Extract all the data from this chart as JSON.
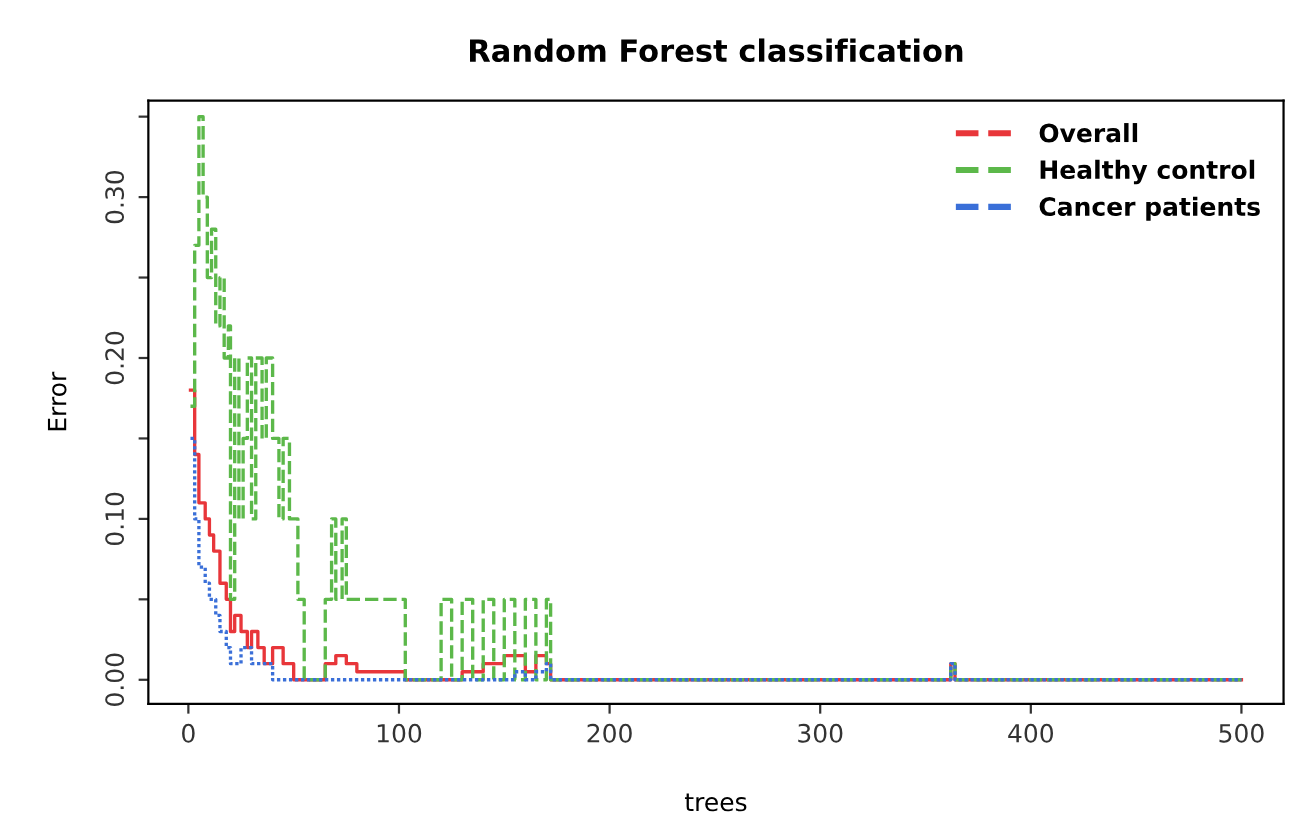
{
  "chart_data": {
    "type": "step",
    "title": "Random Forest classification",
    "xlabel": "trees",
    "ylabel": "Error",
    "xlim": [
      -19,
      520
    ],
    "ylim": [
      -0.015,
      0.36
    ],
    "xticks": [
      0,
      100,
      200,
      300,
      400,
      500
    ],
    "yticks": [
      {
        "value": 0,
        "label": "0.00"
      },
      {
        "value": 0.05,
        "label": null
      },
      {
        "value": 0.1,
        "label": "0.10"
      },
      {
        "value": 0.15,
        "label": null
      },
      {
        "value": 0.2,
        "label": "0.20"
      },
      {
        "value": 0.25,
        "label": null
      },
      {
        "value": 0.3,
        "label": "0.30"
      },
      {
        "value": 0.35,
        "label": null
      }
    ],
    "grid": false,
    "legend": "top right",
    "series": [
      {
        "name": "Overall",
        "color": "#e8363a",
        "line_style": "solid",
        "x": [
          1,
          3,
          5,
          8,
          10,
          12,
          15,
          18,
          20,
          22,
          25,
          28,
          30,
          33,
          36,
          40,
          45,
          50,
          55,
          65,
          70,
          75,
          80,
          90,
          103,
          115,
          130,
          140,
          150,
          160,
          165,
          170,
          172,
          180,
          360,
          362,
          364,
          500
        ],
        "values": [
          0.18,
          0.14,
          0.11,
          0.1,
          0.09,
          0.08,
          0.06,
          0.05,
          0.03,
          0.04,
          0.03,
          0.02,
          0.03,
          0.02,
          0.01,
          0.02,
          0.01,
          0.0,
          0.0,
          0.01,
          0.015,
          0.01,
          0.005,
          0.005,
          0.0,
          0.0,
          0.005,
          0.01,
          0.015,
          0.005,
          0.015,
          0.01,
          0.0,
          0.0,
          0.0,
          0.01,
          0.0,
          0.0
        ]
      },
      {
        "name": "Healthy control",
        "color": "#5cb84a",
        "line_style": "dashed",
        "x": [
          1,
          3,
          5,
          7,
          9,
          11,
          13,
          15,
          17,
          19,
          20,
          22,
          24,
          26,
          28,
          30,
          32,
          35,
          37,
          40,
          43,
          45,
          48,
          52,
          55,
          62,
          65,
          68,
          70,
          73,
          75,
          78,
          90,
          103,
          115,
          120,
          125,
          130,
          135,
          140,
          145,
          150,
          155,
          160,
          165,
          170,
          172,
          180,
          360,
          362,
          364,
          500
        ],
        "values": [
          0.17,
          0.27,
          0.35,
          0.3,
          0.25,
          0.28,
          0.22,
          0.25,
          0.2,
          0.22,
          0.05,
          0.2,
          0.1,
          0.15,
          0.2,
          0.1,
          0.2,
          0.15,
          0.2,
          0.15,
          0.1,
          0.15,
          0.1,
          0.05,
          0.0,
          0.0,
          0.05,
          0.1,
          0.05,
          0.1,
          0.05,
          0.05,
          0.05,
          0.0,
          0.0,
          0.05,
          0.0,
          0.05,
          0.0,
          0.05,
          0.0,
          0.05,
          0.0,
          0.05,
          0.0,
          0.05,
          0.0,
          0.0,
          0.0,
          0.01,
          0.0,
          0.0
        ]
      },
      {
        "name": "Cancer patients",
        "color": "#3a6fd8",
        "line_style": "dotted",
        "x": [
          1,
          3,
          5,
          8,
          10,
          13,
          15,
          18,
          20,
          25,
          30,
          35,
          40,
          50,
          150,
          155,
          160,
          165,
          170,
          172,
          180,
          360,
          362,
          364,
          500
        ],
        "values": [
          0.15,
          0.1,
          0.07,
          0.06,
          0.05,
          0.04,
          0.03,
          0.02,
          0.01,
          0.02,
          0.01,
          0.01,
          0.0,
          0.0,
          0.0,
          0.005,
          0.0,
          0.005,
          0.01,
          0.0,
          0.0,
          0.0,
          0.01,
          0.0,
          0.0
        ]
      }
    ]
  }
}
